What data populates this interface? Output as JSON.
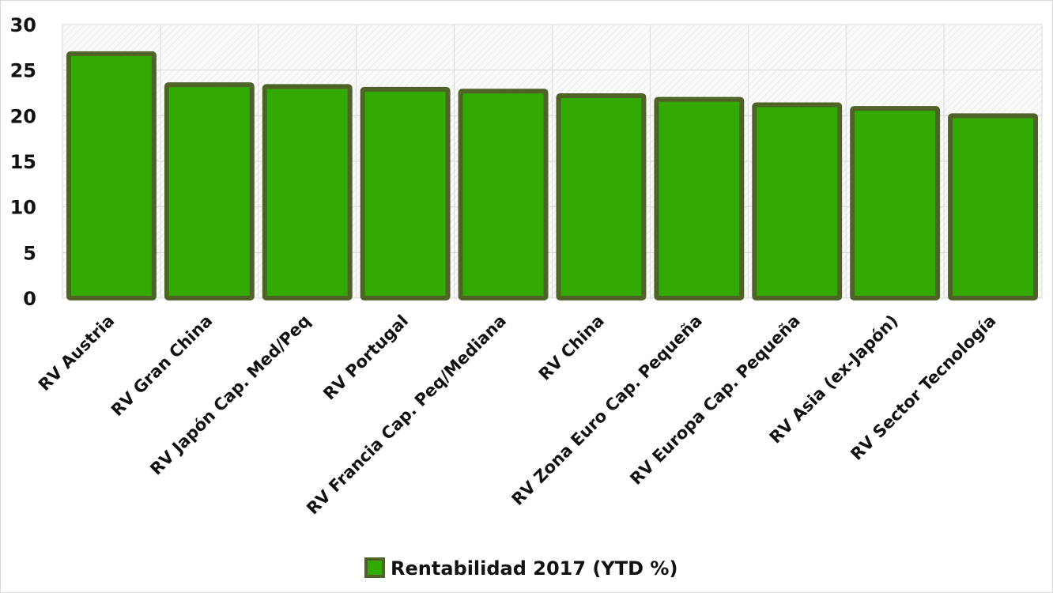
{
  "chart_data": {
    "type": "bar",
    "title": "",
    "xlabel": "",
    "ylabel": "",
    "categories": [
      "RV Austria",
      "RV Gran China",
      "RV Japón Cap. Med/Peq",
      "RV Portugal",
      "RV Francia Cap. Peq/Mediana",
      "RV China",
      "RV Zona Euro Cap. Pequeña",
      "RV Europa Cap. Pequeña",
      "RV Asia (ex-Japón)",
      "RV Sector Tecnología"
    ],
    "series": [
      {
        "name": "Rentabilidad 2017 (YTD %)",
        "values": [
          26.8,
          23.4,
          23.2,
          22.9,
          22.7,
          22.2,
          21.8,
          21.2,
          20.8,
          20.0
        ]
      }
    ],
    "ylim": [
      0,
      30
    ],
    "yticks": [
      0,
      5,
      10,
      15,
      20,
      25,
      30
    ],
    "grid": true,
    "legend": "bottom",
    "colors": {
      "fill": "#33aa04",
      "border": "#4f6228"
    }
  }
}
